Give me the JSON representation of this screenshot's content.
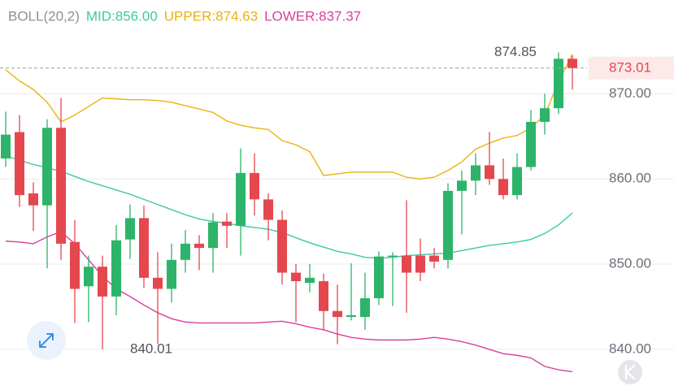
{
  "chart_data": {
    "type": "candlestick",
    "indicator": "BOLL(20,2)",
    "up_color": "#2db46a",
    "down_color": "#e5474f",
    "open": [
      862.4,
      865.5,
      858.3,
      856.9,
      866.0,
      852.6,
      847.4,
      849.7,
      846.2,
      852.9,
      855.4,
      848.4,
      847.1,
      850.5,
      852.4,
      851.9,
      855.0,
      854.5,
      860.7,
      857.6,
      855.2,
      849.0,
      847.8,
      848.0,
      844.5,
      843.8,
      843.8,
      846.0,
      850.9,
      851.0,
      851.0,
      851.0,
      850.5,
      858.6,
      859.8,
      861.6,
      860.0,
      858.1,
      861.4,
      866.7,
      868.3,
      874.1
    ],
    "high": [
      867.9,
      867.5,
      859.6,
      867.0,
      869.5,
      855.2,
      851.0,
      851.0,
      854.6,
      857.0,
      856.9,
      851.4,
      852.4,
      854.0,
      853.4,
      856.0,
      856.0,
      863.6,
      863.0,
      858.3,
      856.3,
      850.0,
      850.0,
      848.9,
      847.6,
      850.1,
      849.0,
      851.5,
      851.4,
      857.5,
      853.0,
      851.9,
      859.5,
      861.0,
      863.0,
      865.5,
      862.4,
      863.0,
      868.1,
      870.0,
      874.85,
      874.5
    ],
    "low": [
      861.4,
      856.7,
      853.9,
      849.5,
      850.5,
      843.1,
      843.2,
      840.01,
      844.0,
      850.6,
      847.2,
      840.6,
      845.5,
      849.0,
      849.3,
      849.0,
      851.9,
      851.0,
      855.7,
      852.8,
      847.6,
      843.2,
      846.7,
      842.2,
      840.6,
      843.4,
      842.3,
      845.2,
      845.1,
      844.3,
      848.0,
      849.5,
      849.5,
      853.5,
      858.1,
      859.3,
      857.6,
      857.6,
      861.0,
      865.2,
      867.6,
      870.5
    ],
    "close": [
      865.2,
      858.1,
      856.9,
      866.0,
      852.4,
      847.1,
      849.7,
      846.2,
      852.8,
      855.4,
      848.4,
      847.1,
      850.5,
      852.4,
      851.9,
      854.9,
      854.5,
      860.7,
      857.6,
      855.2,
      849.0,
      848.0,
      848.4,
      844.5,
      843.8,
      844.0,
      846.0,
      850.9,
      851.0,
      849.0,
      849.0,
      850.3,
      858.6,
      859.8,
      861.6,
      860.0,
      858.1,
      861.4,
      866.7,
      868.3,
      874.1,
      873.01
    ],
    "bands": [
      {
        "label": "MID:856.00",
        "color": "#3cc8a8",
        "values": [
          862.7,
          862.2,
          861.7,
          861.3,
          860.9,
          860.3,
          859.7,
          859.2,
          858.7,
          858.2,
          857.6,
          857.0,
          856.4,
          855.8,
          855.3,
          855.0,
          854.8,
          854.5,
          854.3,
          854.1,
          853.7,
          853.1,
          852.5,
          852.0,
          851.5,
          851.2,
          850.8,
          850.7,
          850.8,
          851.0,
          851.1,
          851.2,
          851.3,
          851.6,
          851.9,
          852.2,
          852.4,
          852.6,
          852.9,
          853.6,
          854.6,
          856.0
        ]
      },
      {
        "label": "UPPER:874.63",
        "color": "#ebb20c",
        "values": [
          872.8,
          871.5,
          870.5,
          869.0,
          866.7,
          867.5,
          868.5,
          869.5,
          869.4,
          869.3,
          869.3,
          869.2,
          869.0,
          868.6,
          868.2,
          867.8,
          866.8,
          866.3,
          866.0,
          865.8,
          864.5,
          864.0,
          863.2,
          860.4,
          860.6,
          860.8,
          860.8,
          860.8,
          860.8,
          860.2,
          860.0,
          860.2,
          861.0,
          862.0,
          863.5,
          864.2,
          864.8,
          865.1,
          866.0,
          867.5,
          871.4,
          874.63
        ]
      },
      {
        "label": "LOWER:837.37",
        "color": "#d8409f",
        "values": [
          852.7,
          852.6,
          852.4,
          853.2,
          853.8,
          852.4,
          850.5,
          848.6,
          847.1,
          846.2,
          845.2,
          844.3,
          843.6,
          843.2,
          843.1,
          843.1,
          843.1,
          843.1,
          843.1,
          843.2,
          843.3,
          843.0,
          842.6,
          842.3,
          841.8,
          841.4,
          841.2,
          841.1,
          841.1,
          841.1,
          841.2,
          841.4,
          841.2,
          840.9,
          840.5,
          840.0,
          839.5,
          839.3,
          839.0,
          838.0,
          837.6,
          837.37
        ]
      }
    ],
    "ylim": [
      835.7,
      881.0
    ],
    "yticks": [
      {
        "value": 840,
        "label": "840.00"
      },
      {
        "value": 850,
        "label": "850.00"
      },
      {
        "value": 860,
        "label": "860.00"
      },
      {
        "value": 870,
        "label": "870.00"
      }
    ],
    "grid": true,
    "current_price": {
      "value": 873.01,
      "label": "873.01"
    },
    "high_annotation": {
      "value": 874.85,
      "label": "874.85"
    },
    "low_annotation": {
      "value": 840.01,
      "label": "840.01"
    }
  }
}
